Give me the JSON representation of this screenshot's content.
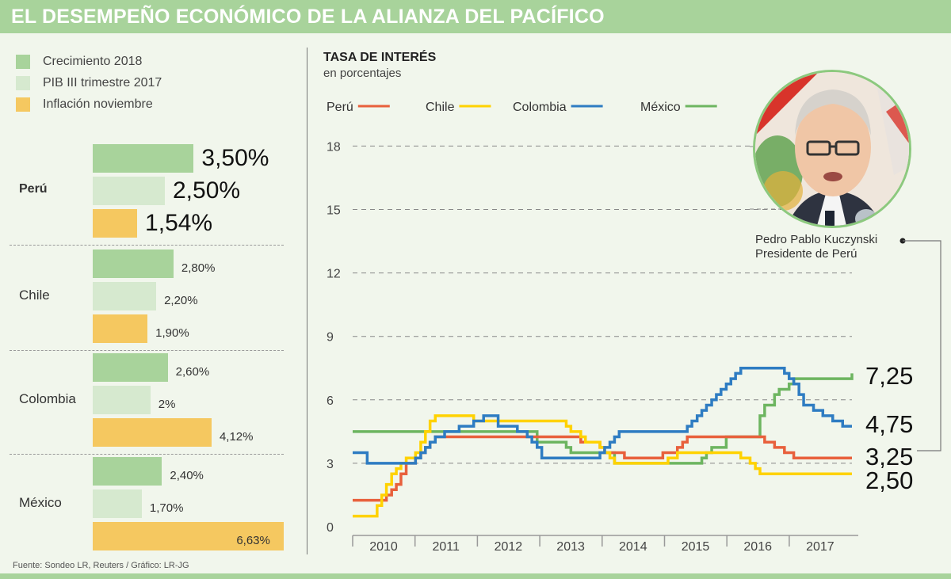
{
  "header": {
    "title": "EL DESEMPEÑO ECONÓMICO DE LA ALIANZA DEL PACÍFICO"
  },
  "legend_left": [
    {
      "label": "Crecimiento 2018",
      "color": "#a8d39b"
    },
    {
      "label": "PIB III trimestre 2017",
      "color": "#d6e9cf"
    },
    {
      "label": "Inflación noviembre",
      "color": "#f5c860"
    }
  ],
  "source": "Fuente: Sondeo LR, Reuters / Gráfico: LR-JG",
  "photo": {
    "caption_name": "Pedro Pablo Kuczynski",
    "caption_role": "Presidente de Perú"
  },
  "chart_data": [
    {
      "type": "bar",
      "orientation": "horizontal",
      "categories": [
        "Perú",
        "Chile",
        "Colombia",
        "México"
      ],
      "series": [
        {
          "name": "Crecimiento 2018",
          "values": [
            3.5,
            2.8,
            2.6,
            2.4
          ],
          "labels": [
            "3,50%",
            "2,80%",
            "2,60%",
            "2,40%"
          ],
          "color": "#a8d39b"
        },
        {
          "name": "PIB III trimestre 2017",
          "values": [
            2.5,
            2.2,
            2.0,
            1.7
          ],
          "labels": [
            "2,50%",
            "2,20%",
            "2%",
            "1,70%"
          ],
          "color": "#d6e9cf"
        },
        {
          "name": "Inflación noviembre",
          "values": [
            1.54,
            1.9,
            4.12,
            6.63
          ],
          "labels": [
            "1,54%",
            "1,90%",
            "4,12%",
            "6,63%"
          ],
          "color": "#f5c860"
        }
      ]
    },
    {
      "type": "line",
      "title": "TASA DE INTERÉS",
      "subtitle": "en porcentajes",
      "xlabel": "",
      "ylabel": "",
      "xlim": [
        2010,
        2017.83
      ],
      "ylim": [
        0,
        18
      ],
      "yticks": [
        0,
        3,
        6,
        9,
        12,
        15,
        18
      ],
      "xtick_labels": [
        "2010",
        "2011",
        "2012",
        "2013",
        "2014",
        "2015",
        "2016",
        "2017"
      ],
      "grid": true,
      "legend_position": "top",
      "series": [
        {
          "name": "Perú",
          "color": "#e8603c",
          "end_label": "3,25",
          "points": [
            [
              2010,
              1.25
            ],
            [
              2010.58,
              1.5
            ],
            [
              2010.67,
              1.75
            ],
            [
              2010.75,
              2.0
            ],
            [
              2010.83,
              2.5
            ],
            [
              2010.92,
              3.0
            ],
            [
              2011.08,
              3.25
            ],
            [
              2011.17,
              3.5
            ],
            [
              2011.25,
              3.75
            ],
            [
              2011.33,
              4.0
            ],
            [
              2011.42,
              4.25
            ],
            [
              2013.92,
              4.0
            ],
            [
              2014.25,
              3.75
            ],
            [
              2014.33,
              3.5
            ],
            [
              2014.67,
              3.25
            ],
            [
              2015.33,
              3.5
            ],
            [
              2015.58,
              3.75
            ],
            [
              2015.67,
              4.0
            ],
            [
              2015.75,
              4.25
            ],
            [
              2016.75,
              4.25
            ],
            [
              2017.08,
              4.0
            ],
            [
              2017.25,
              3.75
            ],
            [
              2017.42,
              3.5
            ],
            [
              2017.58,
              3.25
            ],
            [
              2017.83,
              3.25
            ]
          ]
        },
        {
          "name": "Chile",
          "color": "#ffd200",
          "end_label": "2,50",
          "points": [
            [
              2010,
              0.5
            ],
            [
              2010.42,
              1.0
            ],
            [
              2010.5,
              1.5
            ],
            [
              2010.58,
              2.0
            ],
            [
              2010.67,
              2.5
            ],
            [
              2010.75,
              2.75
            ],
            [
              2010.83,
              3.0
            ],
            [
              2010.92,
              3.25
            ],
            [
              2011.08,
              3.5
            ],
            [
              2011.17,
              4.0
            ],
            [
              2011.25,
              4.5
            ],
            [
              2011.33,
              5.0
            ],
            [
              2011.42,
              5.25
            ],
            [
              2012.08,
              5.0
            ],
            [
              2013.67,
              4.75
            ],
            [
              2013.75,
              4.5
            ],
            [
              2013.92,
              4.25
            ],
            [
              2014.0,
              4.0
            ],
            [
              2014.25,
              3.75
            ],
            [
              2014.33,
              3.5
            ],
            [
              2014.42,
              3.25
            ],
            [
              2014.5,
              3.0
            ],
            [
              2015.42,
              3.25
            ],
            [
              2015.58,
              3.5
            ],
            [
              2016.67,
              3.25
            ],
            [
              2016.83,
              3.0
            ],
            [
              2016.92,
              2.75
            ],
            [
              2017.0,
              2.5
            ],
            [
              2017.83,
              2.5
            ]
          ]
        },
        {
          "name": "Colombia",
          "color": "#2e7cc2",
          "end_label": "4,75",
          "points": [
            [
              2010,
              3.5
            ],
            [
              2010.25,
              3.0
            ],
            [
              2010.92,
              3.0
            ],
            [
              2011.08,
              3.25
            ],
            [
              2011.17,
              3.5
            ],
            [
              2011.25,
              3.75
            ],
            [
              2011.33,
              4.0
            ],
            [
              2011.42,
              4.25
            ],
            [
              2011.58,
              4.5
            ],
            [
              2011.83,
              4.75
            ],
            [
              2012.08,
              5.0
            ],
            [
              2012.25,
              5.25
            ],
            [
              2012.42,
              5.25
            ],
            [
              2012.5,
              4.75
            ],
            [
              2012.83,
              4.5
            ],
            [
              2013.0,
              4.25
            ],
            [
              2013.08,
              4.0
            ],
            [
              2013.17,
              3.75
            ],
            [
              2013.25,
              3.25
            ],
            [
              2014.0,
              3.25
            ],
            [
              2014.25,
              3.5
            ],
            [
              2014.33,
              3.75
            ],
            [
              2014.42,
              4.0
            ],
            [
              2014.5,
              4.25
            ],
            [
              2014.58,
              4.5
            ],
            [
              2015.67,
              4.5
            ],
            [
              2015.75,
              4.75
            ],
            [
              2015.83,
              5.0
            ],
            [
              2015.92,
              5.25
            ],
            [
              2016.0,
              5.5
            ],
            [
              2016.08,
              5.75
            ],
            [
              2016.17,
              6.0
            ],
            [
              2016.25,
              6.25
            ],
            [
              2016.33,
              6.5
            ],
            [
              2016.42,
              6.75
            ],
            [
              2016.5,
              7.0
            ],
            [
              2016.58,
              7.25
            ],
            [
              2016.67,
              7.5
            ],
            [
              2017.33,
              7.5
            ],
            [
              2017.42,
              7.25
            ],
            [
              2017.5,
              7.0
            ],
            [
              2017.58,
              6.75
            ],
            [
              2017.67,
              6.25
            ],
            [
              2017.75,
              5.75
            ],
            [
              2017.92,
              5.5
            ],
            [
              2018.08,
              5.25
            ],
            [
              2018.25,
              5.0
            ],
            [
              2018.42,
              4.75
            ],
            [
              2018.58,
              4.75
            ]
          ]
        },
        {
          "name": "México",
          "color": "#6db560",
          "end_label": "7,25",
          "points": [
            [
              2010,
              4.5
            ],
            [
              2013.17,
              4.5
            ],
            [
              2013.17,
              4.0
            ],
            [
              2013.67,
              3.75
            ],
            [
              2013.75,
              3.5
            ],
            [
              2014.42,
              3.5
            ],
            [
              2014.5,
              3.0
            ],
            [
              2015.92,
              3.0
            ],
            [
              2016.0,
              3.25
            ],
            [
              2016.08,
              3.5
            ],
            [
              2016.17,
              3.75
            ],
            [
              2016.42,
              4.25
            ],
            [
              2016.92,
              4.25
            ],
            [
              2017.0,
              5.25
            ],
            [
              2017.08,
              5.75
            ],
            [
              2017.25,
              6.25
            ],
            [
              2017.33,
              6.5
            ],
            [
              2017.5,
              6.75
            ],
            [
              2017.58,
              7.0
            ],
            [
              2018.58,
              7.0
            ],
            [
              2018.58,
              7.25
            ]
          ]
        }
      ]
    }
  ]
}
